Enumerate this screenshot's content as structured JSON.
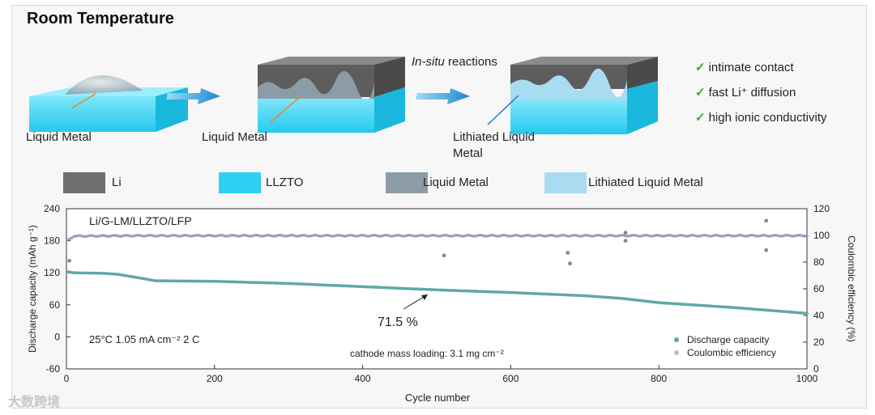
{
  "title": "Room Temperature",
  "schematic": {
    "step1_label": "Liquid Metal",
    "step2_label": "Liquid Metal",
    "reaction_label_italic": "In-situ",
    "reaction_label_rest": " reactions",
    "step3_label_line1": "Lithiated Liquid",
    "step3_label_line2": "Metal",
    "benefits": [
      "intimate contact",
      "fast Li⁺ diffusion",
      "high ionic conductivity"
    ],
    "check_mark": "✓"
  },
  "legend": [
    {
      "label": "Li",
      "color": "#6f6f6f"
    },
    {
      "label": "LLZTO",
      "color": "#2fd0f2"
    },
    {
      "label": "Liquid Metal",
      "color": "#8c9ca6"
    },
    {
      "label": "Lithiated Liquid Metal",
      "color": "#a9dcf0"
    }
  ],
  "watermark": "大数跨境",
  "chart_data": {
    "type": "scatter",
    "cell_label": "Li/G-LM/LLZTO/LFP",
    "conditions": "25°C 1.05 mA cm⁻²   2 C",
    "loading": "cathode mass loading: 3.1 mg cm⁻²",
    "annotation": "71.5 %",
    "xlabel": "Cycle number",
    "ylabel": "Discharge capacity (mAh g⁻¹)",
    "y2label": "Coulombic efficiency (%)",
    "xlim": [
      0,
      1000
    ],
    "ylim": [
      -60,
      240
    ],
    "y2lim": [
      0,
      120
    ],
    "xticks": [
      0,
      200,
      400,
      600,
      800,
      1000
    ],
    "yticks": [
      -60,
      0,
      60,
      120,
      180,
      240
    ],
    "y2ticks": [
      0,
      20,
      40,
      60,
      80,
      100,
      120
    ],
    "series": [
      {
        "name": "Discharge capacity",
        "axis": "left",
        "color": "#5fa8a4",
        "x": [
          1,
          10,
          50,
          70,
          100,
          120,
          200,
          300,
          400,
          500,
          600,
          700,
          750,
          800,
          900,
          1000
        ],
        "values": [
          122,
          120,
          119,
          117,
          110,
          105,
          104,
          100,
          94,
          88,
          83,
          77,
          72,
          64,
          55,
          44
        ]
      },
      {
        "name": "Coulombic efficiency",
        "axis": "right",
        "color": "#8f8fb8",
        "x": [
          1,
          10,
          100,
          200,
          300,
          400,
          500,
          600,
          700,
          800,
          900,
          1000
        ],
        "values": [
          96,
          99.5,
          99.8,
          99.8,
          99.8,
          99.8,
          99.8,
          99.8,
          99.8,
          99.8,
          99.8,
          99.8
        ]
      }
    ],
    "outliers_ce": [
      {
        "x": 4,
        "y": 81
      },
      {
        "x": 510,
        "y": 85
      },
      {
        "x": 677,
        "y": 87
      },
      {
        "x": 680,
        "y": 79
      },
      {
        "x": 755,
        "y": 102
      },
      {
        "x": 755,
        "y": 96
      },
      {
        "x": 945,
        "y": 111
      },
      {
        "x": 945,
        "y": 89
      }
    ],
    "legend_placement": "bottom-right",
    "grid": false
  }
}
